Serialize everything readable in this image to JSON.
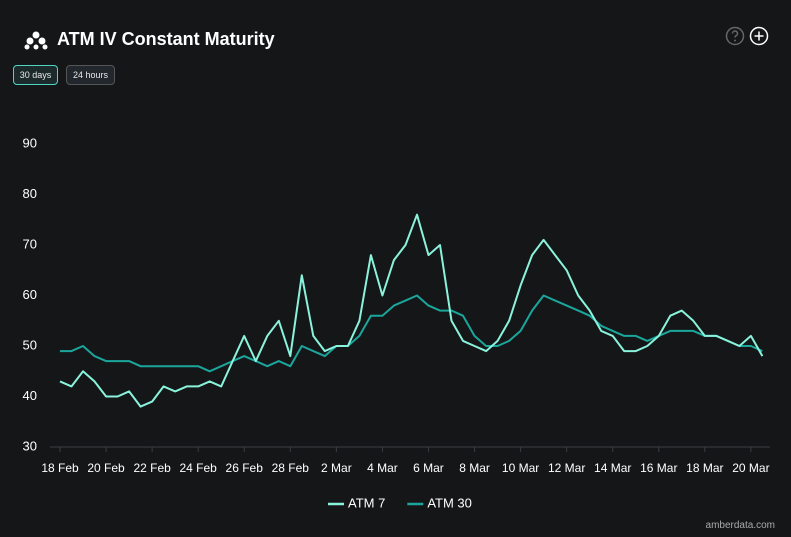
{
  "header": {
    "title": "ATM IV Constant Maturity",
    "buttons": [
      "30 days",
      "24 hours"
    ]
  },
  "footer": "amberdata.com",
  "chart_data": {
    "type": "line",
    "categories": [
      "18 Feb",
      null,
      null,
      null,
      "20 Feb",
      null,
      null,
      null,
      "22 Feb",
      null,
      null,
      null,
      "24 Feb",
      null,
      null,
      null,
      "26 Feb",
      null,
      null,
      null,
      "28 Feb",
      null,
      null,
      null,
      "2 Mar",
      null,
      null,
      null,
      "4 Mar",
      null,
      null,
      null,
      "6 Mar",
      null,
      null,
      null,
      "8 Mar",
      null,
      null,
      null,
      "10 Mar",
      null,
      null,
      null,
      "12 Mar",
      null,
      null,
      null,
      "14 Mar",
      null,
      null,
      null,
      "16 Mar",
      null,
      null,
      null,
      "18 Mar",
      null,
      null,
      null,
      "20 Mar",
      null
    ],
    "series": [
      {
        "name": "ATM 7",
        "color": "#8af3dc",
        "values": [
          43,
          42,
          45,
          43,
          40,
          40,
          41,
          38,
          39,
          42,
          41,
          42,
          42,
          43,
          42,
          47,
          52,
          47,
          52,
          55,
          48,
          64,
          52,
          49,
          50,
          50,
          55,
          68,
          60,
          67,
          70,
          76,
          68,
          70,
          55,
          51,
          50,
          49,
          51,
          55,
          62,
          68,
          71,
          68,
          65,
          60,
          57,
          53,
          52,
          49,
          49,
          50,
          52,
          56,
          57,
          55,
          52,
          52,
          51,
          50,
          52,
          48
        ]
      },
      {
        "name": "ATM 30",
        "color": "#1ba69c",
        "values": [
          49,
          49,
          50,
          48,
          47,
          47,
          47,
          46,
          46,
          46,
          46,
          46,
          46,
          45,
          46,
          47,
          48,
          47,
          46,
          47,
          46,
          50,
          49,
          48,
          50,
          50,
          52,
          56,
          56,
          58,
          59,
          60,
          58,
          57,
          57,
          56,
          52,
          50,
          50,
          51,
          53,
          57,
          60,
          59,
          58,
          57,
          56,
          54,
          53,
          52,
          52,
          51,
          52,
          53,
          53,
          53,
          52,
          52,
          51,
          50,
          50,
          49
        ]
      }
    ],
    "ylim": [
      30,
      90
    ],
    "yticks": [
      30,
      40,
      50,
      60,
      70,
      80,
      90
    ],
    "grid": false
  }
}
